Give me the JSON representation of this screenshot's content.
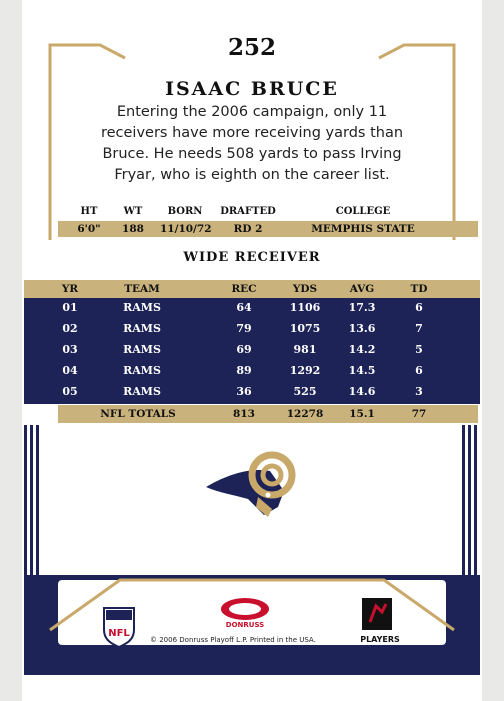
{
  "card": {
    "number": "252",
    "player_name": "ISAAC BRUCE",
    "bio": "Entering the 2006 campaign, only 11 receivers have more receiving yards than Bruce. He needs 508 yards to pass Irving Fryar, who is eighth on the career list.",
    "position": "WIDE RECEIVER"
  },
  "vitals": {
    "headers": [
      "HT",
      "WT",
      "BORN",
      "DRAFTED",
      "COLLEGE"
    ],
    "values": [
      "6'0\"",
      "188",
      "11/10/72",
      "RD 2",
      "MEMPHIS STATE"
    ]
  },
  "stats": {
    "headers": [
      "YR",
      "TEAM",
      "REC",
      "YDS",
      "AVG",
      "TD"
    ],
    "rows": [
      [
        "01",
        "RAMS",
        "64",
        "1106",
        "17.3",
        "6"
      ],
      [
        "02",
        "RAMS",
        "79",
        "1075",
        "13.6",
        "7"
      ],
      [
        "03",
        "RAMS",
        "69",
        "981",
        "14.2",
        "5"
      ],
      [
        "04",
        "RAMS",
        "89",
        "1292",
        "14.5",
        "6"
      ],
      [
        "05",
        "RAMS",
        "36",
        "525",
        "14.6",
        "3"
      ]
    ],
    "totals": {
      "label": "NFL TOTALS",
      "rec": "813",
      "yds": "12278",
      "avg": "15.1",
      "td": "77"
    }
  },
  "footer": {
    "copyright": "© 2006 Donruss Playoff L.P. Printed in the USA.",
    "nfl_logo": "NFL",
    "brand_logo": "DONRUSS",
    "players_logo": "PLAYERS"
  },
  "colors": {
    "navy": "#1d2356",
    "gold": "#c9b27c",
    "frame_gold": "#c9a96a"
  }
}
